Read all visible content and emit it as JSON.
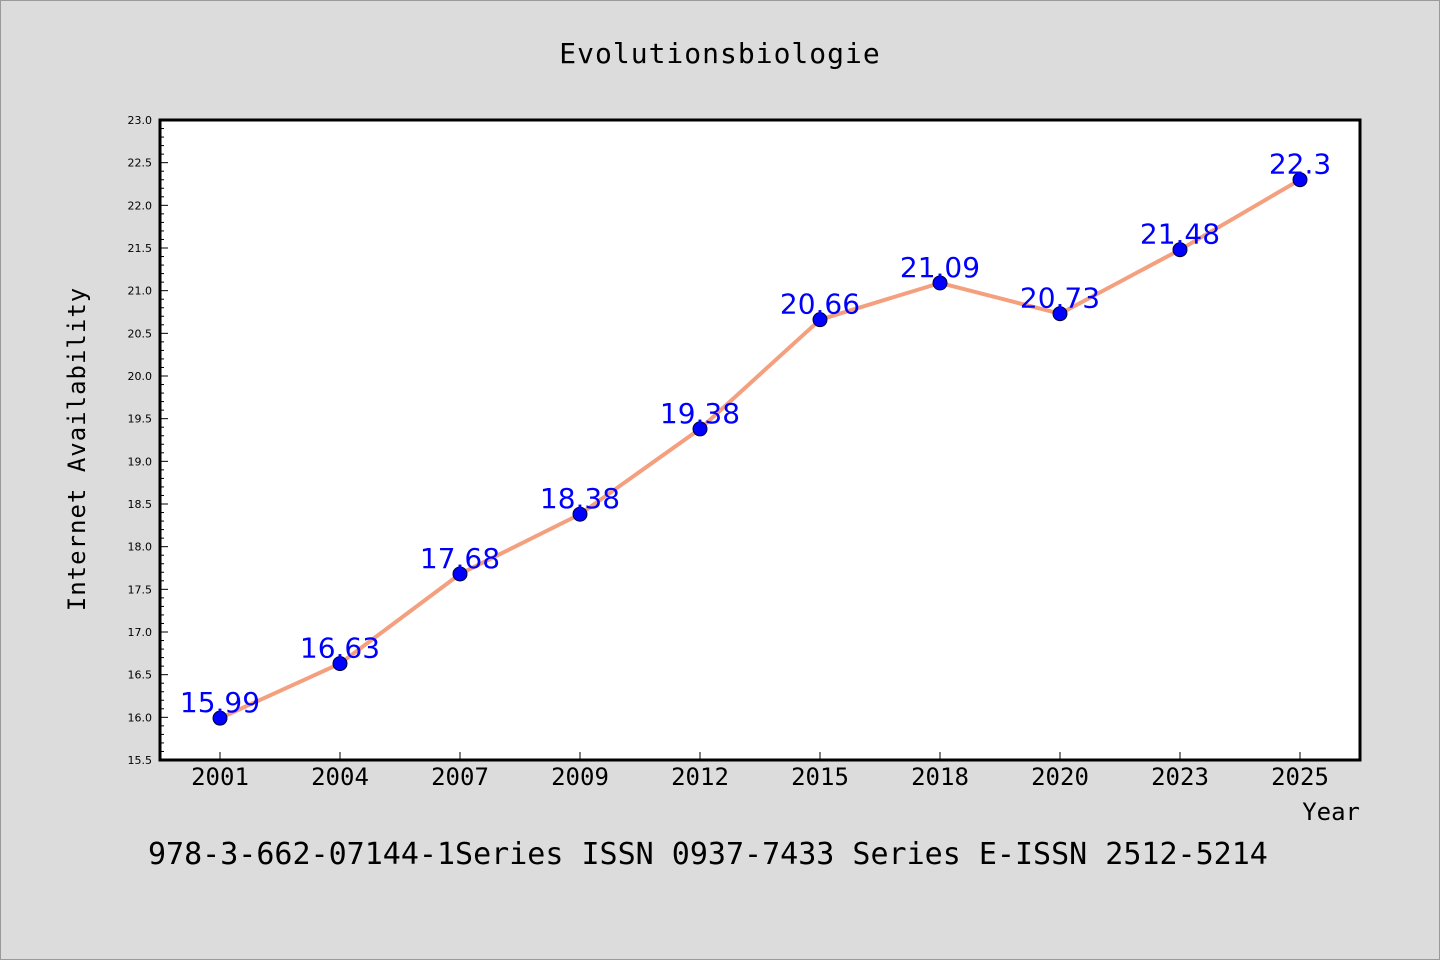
{
  "chart_data": {
    "type": "line",
    "title": "Evolutionsbiologie",
    "xlabel": "Year",
    "ylabel": "Internet Availability",
    "categories": [
      "2001",
      "2004",
      "2007",
      "2009",
      "2012",
      "2015",
      "2018",
      "2020",
      "2023",
      "2025"
    ],
    "series": [
      {
        "values": [
          15.99,
          16.63,
          17.68,
          18.38,
          19.38,
          20.66,
          21.09,
          20.73,
          21.48,
          22.3
        ]
      }
    ],
    "data_labels": [
      "15.99",
      "16.63",
      "17.68",
      "18.38",
      "19.38",
      "20.66",
      "21.09",
      "20.73",
      "21.48",
      "22.3"
    ],
    "ylim": [
      15.5,
      23.0
    ],
    "y_major_ticks": [
      "15.5",
      "16.0",
      "16.5",
      "17.0",
      "17.5",
      "18.0",
      "18.5",
      "19.0",
      "19.5",
      "20.0",
      "20.5",
      "21.0",
      "21.5",
      "22.0",
      "22.5",
      "23.0"
    ],
    "grid": false,
    "legend": "none",
    "colors": {
      "line": "#f4a07f",
      "marker": "#0000ff",
      "label": "#0000ff",
      "axis": "#000000",
      "background": "#dcdcdc",
      "plot_background": "#ffffff"
    }
  },
  "footer_text": "978-3-662-07144-1Series ISSN 0937-7433 Series E-ISSN 2512-5214"
}
